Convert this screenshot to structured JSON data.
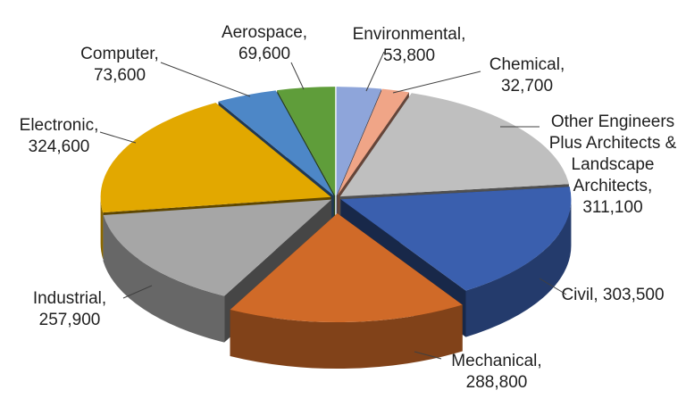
{
  "chart_data": {
    "type": "pie",
    "title": "",
    "style": "3d-exploded",
    "slices": [
      {
        "name": "Environmental",
        "value": 53800,
        "label": [
          "Environmental,",
          "53,800"
        ],
        "color": "#8EA5DA"
      },
      {
        "name": "Chemical",
        "value": 32700,
        "label": [
          "Chemical,",
          "32,700"
        ],
        "color": "#F0A587"
      },
      {
        "name": "Other Engineers Plus Architects & Landscape Architects",
        "value": 311100,
        "label": [
          "Other Engineers",
          "Plus Architects &",
          "Landscape",
          "Architects,",
          "311,100"
        ],
        "color": "#BFBFBF"
      },
      {
        "name": "Civil",
        "value": 303500,
        "label": [
          "Civil, 303,500"
        ],
        "color": "#3A5FAE"
      },
      {
        "name": "Mechanical",
        "value": 288800,
        "label": [
          "Mechanical,",
          "288,800"
        ],
        "color": "#D06A28"
      },
      {
        "name": "Industrial",
        "value": 257900,
        "label": [
          "Industrial,",
          "257,900"
        ],
        "color": "#A6A6A6"
      },
      {
        "name": "Electronic",
        "value": 324600,
        "label": [
          "Electronic,",
          "324,600"
        ],
        "color": "#E2A800"
      },
      {
        "name": "Computer",
        "value": 73600,
        "label": [
          "Computer,",
          "73,600"
        ],
        "color": "#4D87C7"
      },
      {
        "name": "Aerospace",
        "value": 69600,
        "label": [
          "Aerospace,",
          "69,600"
        ],
        "color": "#5F9D3A"
      }
    ]
  }
}
